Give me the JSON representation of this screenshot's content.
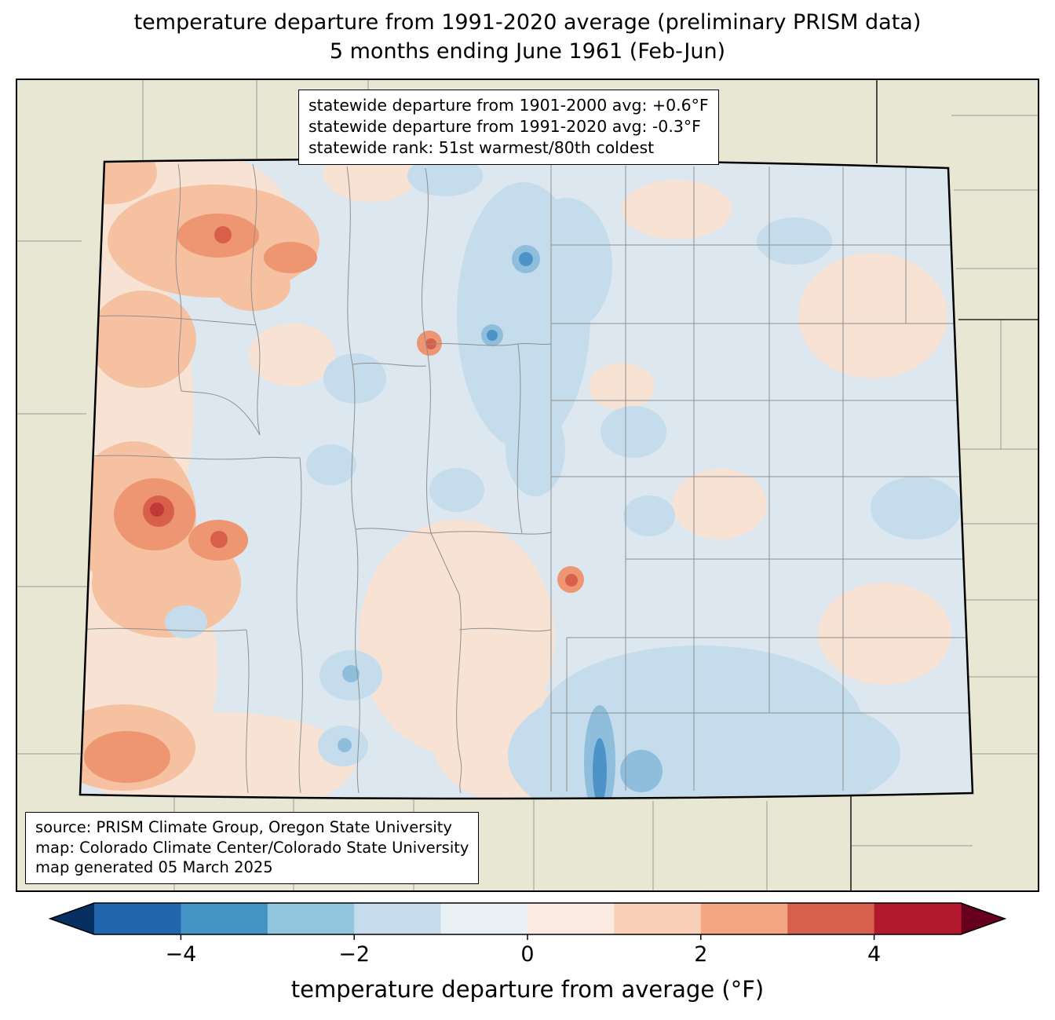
{
  "title": {
    "line1": "temperature departure from 1991-2020 average (preliminary PRISM data)",
    "line2": "5 months ending June 1961 (Feb-Jun)"
  },
  "stats_box": {
    "lines": [
      "statewide departure from 1901-2000 avg: +0.6°F",
      "statewide departure from 1991-2020 avg: -0.3°F",
      "statewide rank: 51st warmest/80th coldest"
    ]
  },
  "source_box": {
    "lines": [
      "source: PRISM Climate Group, Oregon State University",
      "map: Colorado Climate Center/Colorado State University",
      "map generated 05 March 2025"
    ]
  },
  "colorbar": {
    "label": "temperature departure from average (°F)",
    "range": [
      -5,
      5
    ],
    "tick_values": [
      -4,
      -2,
      0,
      2,
      4
    ],
    "tick_labels": [
      "−4",
      "−2",
      "0",
      "2",
      "4"
    ],
    "colors": [
      "#2166ac",
      "#4393c3",
      "#92c5de",
      "#c6dcec",
      "#e9f0f4",
      "#faeae1",
      "#fbd0b9",
      "#f4a582",
      "#d6604d",
      "#b2182b"
    ],
    "under_color": "#053061",
    "over_color": "#67001f"
  },
  "map": {
    "region": "Colorado",
    "outside_fill": "#e8e7d4",
    "state_base_fill": "#dde7f0"
  }
}
